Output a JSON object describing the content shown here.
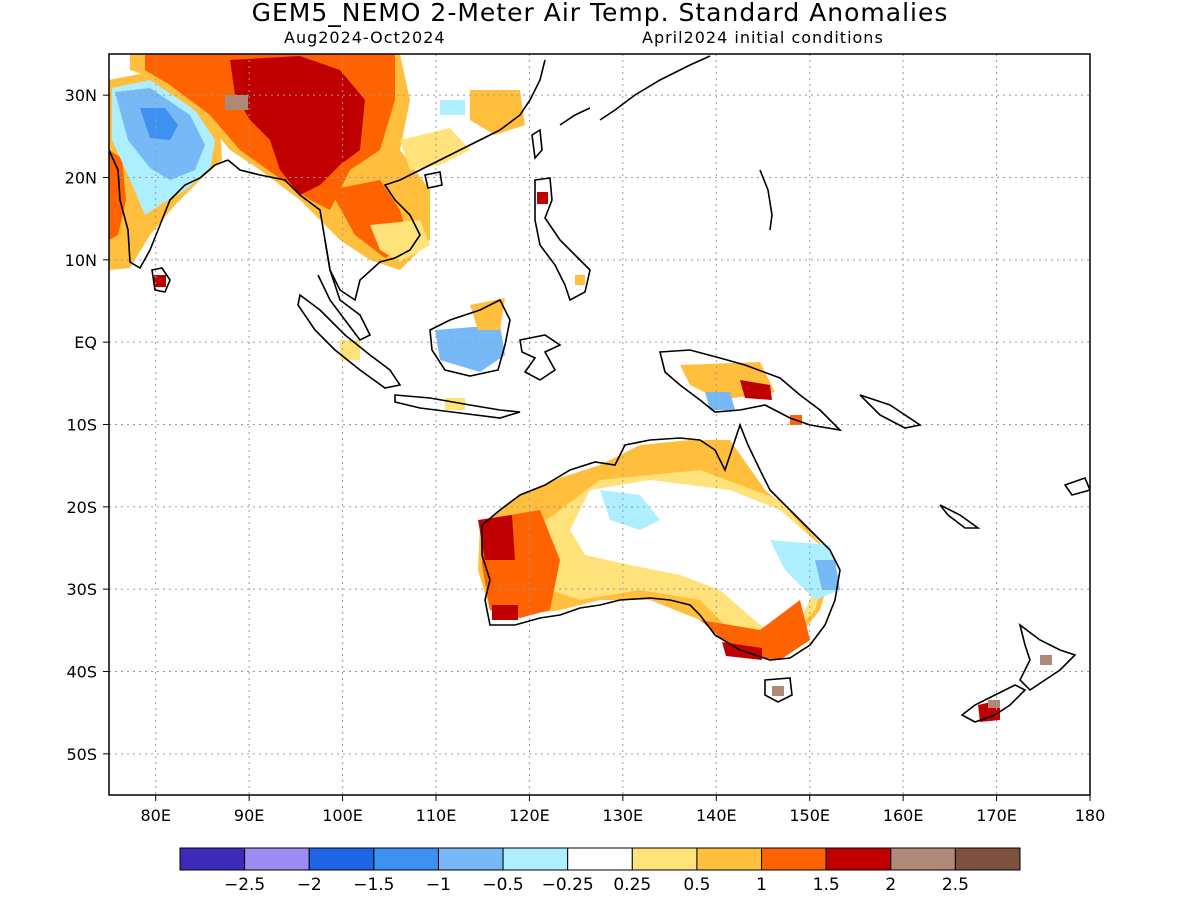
{
  "header": {
    "title": "GEM5_NEMO 2-Meter Air Temp. Standard Anomalies",
    "period": "Aug2024-Oct2024",
    "init": "April2024 initial conditions"
  },
  "map": {
    "lon_range": [
      75,
      180
    ],
    "lat_range": [
      -55,
      35
    ],
    "lat_ticks": [
      {
        "value": 30,
        "label": "30N"
      },
      {
        "value": 20,
        "label": "20N"
      },
      {
        "value": 10,
        "label": "10N"
      },
      {
        "value": 0,
        "label": "EQ"
      },
      {
        "value": -10,
        "label": "10S"
      },
      {
        "value": -20,
        "label": "20S"
      },
      {
        "value": -30,
        "label": "30S"
      },
      {
        "value": -40,
        "label": "40S"
      },
      {
        "value": -50,
        "label": "50S"
      }
    ],
    "lon_ticks": [
      {
        "value": 80,
        "label": "80E"
      },
      {
        "value": 90,
        "label": "90E"
      },
      {
        "value": 100,
        "label": "100E"
      },
      {
        "value": 110,
        "label": "110E"
      },
      {
        "value": 120,
        "label": "120E"
      },
      {
        "value": 130,
        "label": "130E"
      },
      {
        "value": 140,
        "label": "140E"
      },
      {
        "value": 150,
        "label": "150E"
      },
      {
        "value": 160,
        "label": "160E"
      },
      {
        "value": 170,
        "label": "170E"
      },
      {
        "value": 180,
        "label": "180"
      }
    ],
    "grid": "dotted"
  },
  "colorbar": {
    "colors": [
      "#3c2bb8",
      "#9d8cf4",
      "#1f63e6",
      "#3d91f0",
      "#77b8f6",
      "#aeefff",
      "#ffffff",
      "#ffe27a",
      "#ffbf3d",
      "#ff6201",
      "#c00000",
      "#b08878",
      "#7d5040"
    ],
    "labels": [
      "-2.5",
      "-2",
      "-1.5",
      "-1",
      "-0.5",
      "-0.25",
      "0.25",
      "0.5",
      "1",
      "1.5",
      "2",
      "2.5"
    ]
  }
}
